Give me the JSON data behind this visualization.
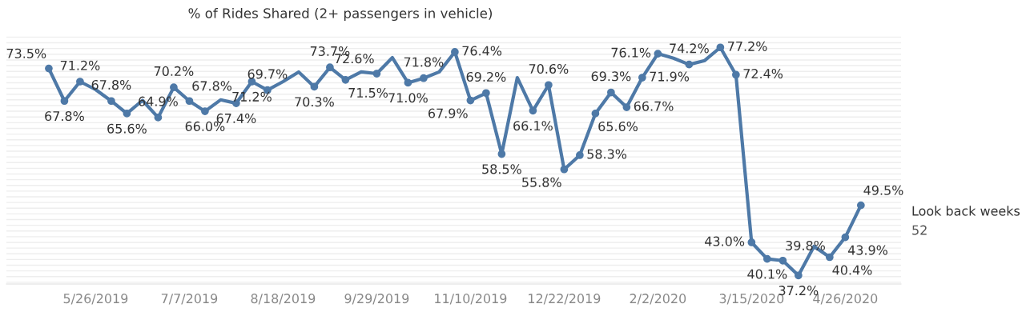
{
  "chart_data": {
    "type": "line",
    "title": "% of Rides Shared (2+ passengers in vehicle)",
    "x": [
      "2019-05-05",
      "2019-05-12",
      "2019-05-19",
      "2019-05-26",
      "2019-06-02",
      "2019-06-09",
      "2019-06-16",
      "2019-06-23",
      "2019-06-30",
      "2019-07-07",
      "2019-07-14",
      "2019-07-21",
      "2019-07-28",
      "2019-08-04",
      "2019-08-11",
      "2019-08-18",
      "2019-08-25",
      "2019-09-01",
      "2019-09-08",
      "2019-09-15",
      "2019-09-22",
      "2019-09-29",
      "2019-10-06",
      "2019-10-13",
      "2019-10-20",
      "2019-10-27",
      "2019-11-03",
      "2019-11-10",
      "2019-11-17",
      "2019-11-24",
      "2019-12-01",
      "2019-12-08",
      "2019-12-15",
      "2019-12-22",
      "2019-12-29",
      "2020-01-05",
      "2020-01-12",
      "2020-01-19",
      "2020-01-26",
      "2020-02-02",
      "2020-02-09",
      "2020-02-16",
      "2020-02-23",
      "2020-03-01",
      "2020-03-08",
      "2020-03-15",
      "2020-03-22",
      "2020-03-29",
      "2020-04-05",
      "2020-04-12",
      "2020-04-19",
      "2020-04-26",
      "2020-05-03"
    ],
    "series": [
      {
        "color": "#4e79a7",
        "values": [
          73.5,
          67.8,
          71.2,
          69.8,
          67.8,
          65.6,
          67.9,
          64.9,
          70.2,
          67.8,
          66.0,
          68.0,
          67.4,
          71.2,
          69.7,
          71.2,
          72.9,
          70.3,
          73.7,
          71.5,
          72.9,
          72.6,
          75.4,
          71.0,
          71.8,
          72.9,
          76.4,
          67.9,
          69.2,
          58.5,
          71.9,
          66.1,
          70.6,
          55.8,
          58.3,
          65.6,
          69.3,
          66.7,
          71.9,
          76.1,
          75.3,
          74.2,
          74.9,
          77.2,
          72.4,
          43.0,
          40.1,
          39.8,
          37.2,
          42.3,
          40.4,
          43.9,
          49.5
        ],
        "value_labels": [
          "73.5%",
          "67.8%",
          "71.2%",
          null,
          "67.8%",
          "65.6%",
          null,
          "64.9%",
          "70.2%",
          "67.8%",
          "66.0%",
          null,
          "67.4%",
          "71.2%",
          "69.7%",
          null,
          null,
          "70.3%",
          "73.7%",
          "71.5%",
          null,
          "72.6%",
          null,
          "71.0%",
          "71.8%",
          null,
          "76.4%",
          "67.9%",
          "69.2%",
          "58.5%",
          null,
          "66.1%",
          "70.6%",
          "55.8%",
          "58.3%",
          "65.6%",
          "69.3%",
          "66.7%",
          "71.9%",
          "76.1%",
          null,
          "74.2%",
          null,
          "77.2%",
          "72.4%",
          "43.0%",
          "40.1%",
          "39.8%",
          "37.2%",
          null,
          "40.4%",
          "43.9%",
          "49.5%"
        ]
      }
    ],
    "xlim": [
      "2019-04-16",
      "2020-05-21"
    ],
    "xticks": [
      {
        "value": "2019-05-26",
        "label": "5/26/2019"
      },
      {
        "value": "2019-07-07",
        "label": "7/7/2019"
      },
      {
        "value": "2019-08-18",
        "label": "8/18/2019"
      },
      {
        "value": "2019-09-29",
        "label": "9/29/2019"
      },
      {
        "value": "2019-11-10",
        "label": "11/10/2019"
      },
      {
        "value": "2019-12-22",
        "label": "12/22/2019"
      },
      {
        "value": "2020-02-02",
        "label": "2/2/2020"
      },
      {
        "value": "2020-03-15",
        "label": "3/15/2020"
      },
      {
        "value": "2020-04-26",
        "label": "4/26/2020"
      }
    ],
    "ylim": [
      35.7,
      79.2
    ],
    "yticks": [
      {
        "value": 36,
        "label": null
      },
      {
        "value": 37,
        "label": null
      },
      {
        "value": 38,
        "label": null
      },
      {
        "value": 39,
        "label": null
      },
      {
        "value": 40,
        "label": null
      },
      {
        "value": 41,
        "label": null
      },
      {
        "value": 42,
        "label": null
      },
      {
        "value": 43,
        "label": null
      },
      {
        "value": 44,
        "label": null
      },
      {
        "value": 45,
        "label": null
      },
      {
        "value": 46,
        "label": null
      },
      {
        "value": 47,
        "label": null
      },
      {
        "value": 48,
        "label": null
      },
      {
        "value": 49,
        "label": null
      },
      {
        "value": 50,
        "label": null
      },
      {
        "value": 51,
        "label": null
      },
      {
        "value": 52,
        "label": null
      },
      {
        "value": 53,
        "label": null
      },
      {
        "value": 54,
        "label": null
      },
      {
        "value": 55,
        "label": null
      },
      {
        "value": 56,
        "label": null
      },
      {
        "value": 57,
        "label": null
      },
      {
        "value": 58,
        "label": null
      },
      {
        "value": 59,
        "label": null
      },
      {
        "value": 60,
        "label": null
      },
      {
        "value": 61,
        "label": null
      },
      {
        "value": 62,
        "label": null
      },
      {
        "value": 63,
        "label": null
      },
      {
        "value": 64,
        "label": null
      },
      {
        "value": 65,
        "label": null
      },
      {
        "value": 66,
        "label": null
      },
      {
        "value": 67,
        "label": null
      },
      {
        "value": 68,
        "label": null
      },
      {
        "value": 69,
        "label": null
      },
      {
        "value": 70,
        "label": null
      },
      {
        "value": 71,
        "label": null
      },
      {
        "value": 72,
        "label": null
      },
      {
        "value": 73,
        "label": null
      },
      {
        "value": 74,
        "label": null
      },
      {
        "value": 75,
        "label": null
      },
      {
        "value": 76,
        "label": null
      },
      {
        "value": 77,
        "label": null
      },
      {
        "value": 78,
        "label": null
      },
      {
        "value": 79,
        "label": null
      }
    ],
    "tick_labels": "x",
    "grid": "y",
    "marker": "circle",
    "line_style": "solid",
    "annotations": [
      "Look back weeks",
      "52"
    ]
  }
}
